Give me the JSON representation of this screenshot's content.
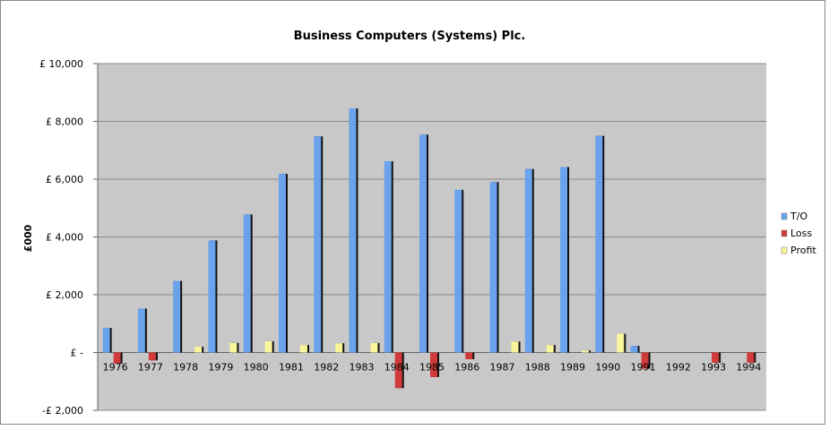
{
  "chart_data": {
    "type": "bar",
    "title": "Business Computers (Systems) Plc.",
    "xlabel": "",
    "ylabel": "£000",
    "ylim": [
      -2000,
      10000
    ],
    "y_ticks": [
      {
        "value": 10000,
        "label": "£ 10,000"
      },
      {
        "value": 8000,
        "label": "£ 8,000"
      },
      {
        "value": 6000,
        "label": "£ 6,000"
      },
      {
        "value": 4000,
        "label": "£ 4,000"
      },
      {
        "value": 2000,
        "label": "£ 2,000"
      },
      {
        "value": 0,
        "label": "£ -"
      },
      {
        "value": -2000,
        "label": "-£ 2,000"
      }
    ],
    "categories": [
      "1976",
      "1977",
      "1978",
      "1979",
      "1980",
      "1981",
      "1982",
      "1983",
      "1984",
      "1985",
      "1986",
      "1987",
      "1988",
      "1989",
      "1990",
      "1991",
      "1992",
      "1993",
      "1994"
    ],
    "series": [
      {
        "name": "T/O",
        "color": "#6aa3ec",
        "values": [
          850,
          1520,
          2480,
          3880,
          4780,
          6180,
          7480,
          8450,
          6620,
          7540,
          5630,
          5900,
          6350,
          6420,
          7500,
          230,
          0,
          0,
          0
        ]
      },
      {
        "name": "Loss",
        "color": "#d13a3a",
        "values": [
          -380,
          -270,
          0,
          0,
          0,
          0,
          0,
          0,
          -1230,
          -850,
          -230,
          0,
          0,
          0,
          0,
          -560,
          0,
          -350,
          -350
        ]
      },
      {
        "name": "Profit",
        "color": "#fbf59a",
        "values": [
          0,
          0,
          200,
          330,
          390,
          260,
          320,
          330,
          0,
          0,
          0,
          380,
          260,
          70,
          650,
          0,
          0,
          0,
          0
        ]
      }
    ],
    "legend_position": "right",
    "grid": true,
    "plot_background": "#c8c8c8"
  }
}
